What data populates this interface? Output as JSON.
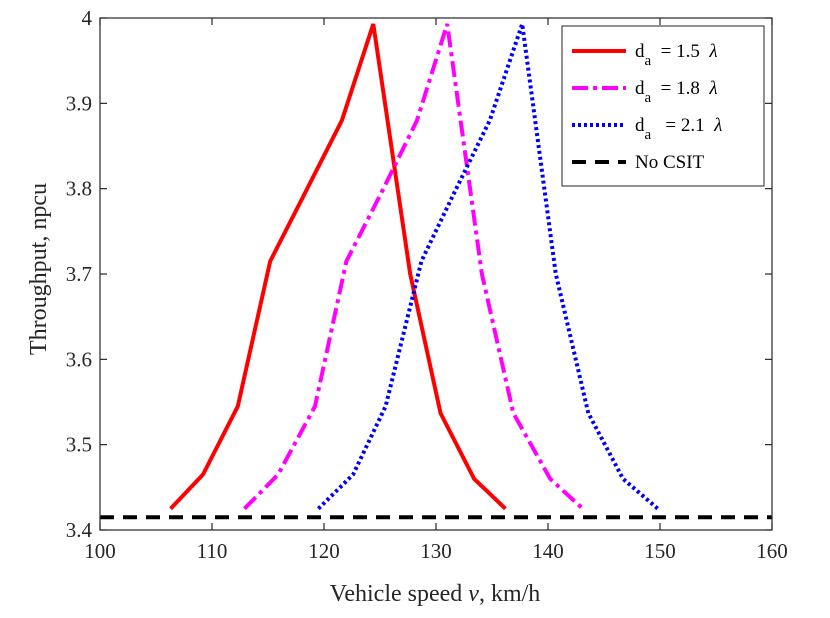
{
  "chart_data": {
    "type": "line",
    "title": "",
    "xlabel_prefix": "Vehicle speed ",
    "xlabel_var": "v",
    "xlabel_suffix": ",  km/h",
    "ylabel": "Throughput, npcu",
    "xlim": [
      100,
      160
    ],
    "ylim": [
      3.4,
      4.0
    ],
    "xticks": [
      "100",
      "110",
      "120",
      "130",
      "140",
      "150",
      "160"
    ],
    "yticks": [
      "3.4",
      "3.5",
      "3.6",
      "3.7",
      "3.8",
      "3.9",
      "4"
    ],
    "grid": false,
    "legend_position": "top-right",
    "series": [
      {
        "name": "d_a = 1.5 λ",
        "legend_base": "d",
        "legend_sub": "a",
        "legend_eq": " = 1.5 ",
        "legend_lambda": "λ",
        "color": "#ff0000",
        "style": "solid",
        "x": [
          106.3,
          109.2,
          112.3,
          115.2,
          118.5,
          121.6,
          124.4,
          127.7,
          130.4,
          133.4,
          136.2
        ],
        "y": [
          3.425,
          3.465,
          3.545,
          3.715,
          3.8,
          3.88,
          3.993,
          3.7,
          3.537,
          3.46,
          3.425
        ]
      },
      {
        "name": "d_a = 1.8 λ",
        "legend_base": "d",
        "legend_sub": "a",
        "legend_eq": " = 1.8 ",
        "legend_lambda": "λ",
        "color": "#ff00ff",
        "style": "dashdot",
        "x": [
          112.9,
          115.9,
          119.2,
          122.0,
          125.3,
          128.3,
          131.0,
          134.1,
          136.9,
          140.2,
          143.1
        ],
        "y": [
          3.425,
          3.465,
          3.545,
          3.715,
          3.8,
          3.88,
          3.993,
          3.7,
          3.537,
          3.46,
          3.425
        ]
      },
      {
        "name": "d_a = 2.1 λ",
        "legend_base": "d",
        "legend_sub": "a",
        "legend_eq": "  = 2.1 ",
        "legend_lambda": "λ",
        "color": "#0000ff",
        "style": "dotted",
        "x": [
          119.5,
          122.6,
          125.5,
          128.7,
          131.8,
          134.8,
          137.7,
          140.7,
          143.6,
          146.7,
          149.8
        ],
        "y": [
          3.425,
          3.465,
          3.545,
          3.715,
          3.8,
          3.88,
          3.993,
          3.7,
          3.537,
          3.46,
          3.425
        ]
      },
      {
        "name": "No CSIT",
        "legend_base": "No CSIT",
        "legend_sub": "",
        "legend_eq": "",
        "legend_lambda": "",
        "color": "#000000",
        "style": "dashed",
        "x": [
          100,
          160
        ],
        "y": [
          3.415,
          3.415
        ]
      }
    ]
  }
}
